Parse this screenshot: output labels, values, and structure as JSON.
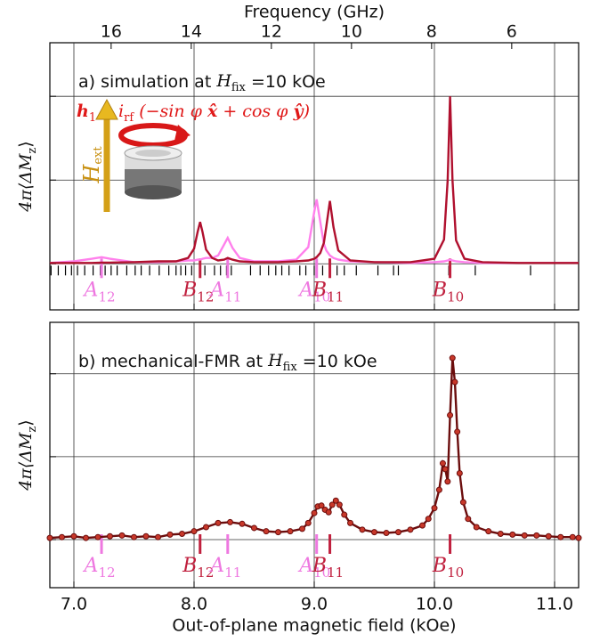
{
  "chart_data": [
    {
      "type": "line",
      "x2label": "Frequency (GHz)",
      "x2lim": [
        17.53,
        4.33
      ],
      "x2ticks": [
        16,
        14,
        12,
        10,
        8,
        6
      ],
      "title": {
        "pre": "a) simulation at ",
        "var": "H",
        "sub": "fix",
        "post": " =10 kOe"
      },
      "formula": [
        {
          "text": "h",
          "bold": true
        },
        {
          "text": "1",
          "sub": true
        },
        {
          "text": " ∝ i"
        },
        {
          "text": "rf",
          "sub": true
        },
        {
          "text": " (−sin φ "
        },
        {
          "text": "x̂",
          "bold": true
        },
        {
          "text": " + cos φ "
        },
        {
          "text": "ŷ",
          "bold": true
        },
        {
          "text": ")"
        }
      ],
      "inset_label": {
        "var": "H",
        "sub": "ext"
      },
      "ylabel": {
        "main": "4π⟨ΔM",
        "sub": "z",
        "end": "⟩"
      },
      "xlim": [
        6.8,
        11.2
      ],
      "xticks": [
        7,
        8,
        9,
        10,
        11
      ],
      "ylim": [
        -0.55,
        2.64
      ],
      "yticks": [
        0,
        1,
        2
      ],
      "grid": true,
      "x": [
        6.8,
        7.0,
        7.15,
        7.23,
        7.3,
        7.5,
        7.7,
        7.85,
        7.95,
        8.0,
        8.03,
        8.05,
        8.07,
        8.1,
        8.15,
        8.2,
        8.25,
        8.28,
        8.32,
        8.38,
        8.5,
        8.7,
        8.85,
        8.95,
        9.0,
        9.02,
        9.05,
        9.08,
        9.1,
        9.13,
        9.16,
        9.2,
        9.3,
        9.5,
        9.8,
        10.0,
        10.08,
        10.11,
        10.13,
        10.15,
        10.18,
        10.25,
        10.4,
        10.7,
        11.0,
        11.2
      ],
      "series": [
        {
          "color": "#ff80ec",
          "values": [
            0.01,
            0.03,
            0.06,
            0.08,
            0.06,
            0.02,
            0.02,
            0.03,
            0.04,
            0.04,
            0.05,
            0.05,
            0.06,
            0.07,
            0.07,
            0.1,
            0.23,
            0.31,
            0.19,
            0.07,
            0.03,
            0.03,
            0.05,
            0.2,
            0.62,
            0.77,
            0.5,
            0.24,
            0.16,
            0.1,
            0.07,
            0.05,
            0.03,
            0.02,
            0.01,
            0.02,
            0.03,
            0.04,
            0.05,
            0.04,
            0.03,
            0.02,
            0.01,
            0.01,
            0.01,
            0.01
          ]
        },
        {
          "color": "#b0102e",
          "values": [
            0.01,
            0.01,
            0.01,
            0.015,
            0.015,
            0.02,
            0.03,
            0.03,
            0.07,
            0.18,
            0.38,
            0.5,
            0.38,
            0.17,
            0.07,
            0.04,
            0.05,
            0.07,
            0.05,
            0.03,
            0.02,
            0.02,
            0.03,
            0.04,
            0.06,
            0.08,
            0.13,
            0.25,
            0.44,
            0.75,
            0.44,
            0.16,
            0.04,
            0.02,
            0.02,
            0.06,
            0.29,
            1.0,
            2.0,
            1.0,
            0.28,
            0.06,
            0.02,
            0.01,
            0.01,
            0.01
          ]
        }
      ],
      "mode_ticks": [
        6.81,
        6.87,
        6.93,
        6.98,
        7.03,
        7.09,
        7.16,
        7.22,
        7.26,
        7.31,
        7.36,
        7.44,
        7.51,
        7.56,
        7.63,
        7.71,
        7.79,
        7.85,
        7.89,
        7.93,
        7.98,
        8.05,
        8.09,
        8.17,
        8.22,
        8.27,
        8.31,
        8.47,
        8.55,
        8.62,
        8.68,
        8.73,
        8.79,
        8.88,
        8.93,
        9.0,
        9.07,
        9.13,
        9.19,
        9.25,
        9.35,
        9.53,
        9.66,
        9.7,
        10.12,
        10.34,
        10.8
      ],
      "modes": [
        {
          "letter": "A",
          "sub": "12",
          "x": 7.23,
          "color": "#ee78e0"
        },
        {
          "letter": "B",
          "sub": "12",
          "x": 8.05,
          "color": "#c0203e"
        },
        {
          "letter": "A",
          "sub": "11",
          "x": 8.28,
          "color": "#ee78e0"
        },
        {
          "letter": "A",
          "sub": "10",
          "x": 9.02,
          "color": "#ee78e0"
        },
        {
          "letter": "B",
          "sub": "11",
          "x": 9.13,
          "color": "#c0203e"
        },
        {
          "letter": "B",
          "sub": "10",
          "x": 10.13,
          "color": "#c0203e"
        }
      ]
    },
    {
      "type": "line",
      "markers": true,
      "title": {
        "pre": "b) mechanical-FMR at ",
        "var": "H",
        "sub": "fix",
        "post": " =10 kOe"
      },
      "ylabel": {
        "main": "4π⟨ΔM",
        "sub": "z",
        "end": "⟩"
      },
      "xlabel": "Out-of-plane magnetic field (kOe)",
      "xlim": [
        6.8,
        11.2
      ],
      "xticks": [
        {
          "value": 7,
          "label": "7.0"
        },
        {
          "value": 8,
          "label": "8.0"
        },
        {
          "value": 9,
          "label": "9.0"
        },
        {
          "value": 10,
          "label": "10.0"
        },
        {
          "value": 11,
          "label": "11.0"
        }
      ],
      "ylim": [
        -0.58,
        2.62
      ],
      "yticks": [
        0,
        1,
        2
      ],
      "grid": true,
      "x": [
        6.8,
        6.9,
        7.0,
        7.1,
        7.2,
        7.3,
        7.4,
        7.5,
        7.6,
        7.7,
        7.8,
        7.9,
        8.0,
        8.1,
        8.2,
        8.3,
        8.4,
        8.5,
        8.6,
        8.7,
        8.8,
        8.9,
        8.95,
        9.0,
        9.03,
        9.06,
        9.09,
        9.12,
        9.15,
        9.18,
        9.21,
        9.25,
        9.3,
        9.4,
        9.5,
        9.6,
        9.7,
        9.8,
        9.9,
        9.95,
        10.0,
        10.04,
        10.07,
        10.09,
        10.11,
        10.13,
        10.15,
        10.17,
        10.19,
        10.21,
        10.24,
        10.28,
        10.35,
        10.45,
        10.55,
        10.65,
        10.75,
        10.85,
        10.95,
        11.05,
        11.15,
        11.2
      ],
      "series": [
        {
          "color": "#6b0d0d",
          "marker_color": "#c8382a",
          "values": [
            0.02,
            0.03,
            0.04,
            0.02,
            0.03,
            0.04,
            0.05,
            0.03,
            0.04,
            0.03,
            0.06,
            0.07,
            0.1,
            0.15,
            0.2,
            0.21,
            0.19,
            0.14,
            0.1,
            0.09,
            0.1,
            0.13,
            0.2,
            0.32,
            0.4,
            0.41,
            0.36,
            0.33,
            0.42,
            0.47,
            0.42,
            0.3,
            0.2,
            0.12,
            0.09,
            0.08,
            0.09,
            0.12,
            0.17,
            0.25,
            0.38,
            0.6,
            0.92,
            0.85,
            0.7,
            1.5,
            2.19,
            1.9,
            1.3,
            0.8,
            0.45,
            0.25,
            0.15,
            0.1,
            0.07,
            0.06,
            0.05,
            0.05,
            0.04,
            0.03,
            0.03,
            0.02
          ]
        }
      ],
      "modes": [
        {
          "letter": "A",
          "sub": "12",
          "x": 7.23,
          "color": "#ee78e0"
        },
        {
          "letter": "B",
          "sub": "12",
          "x": 8.05,
          "color": "#c0203e"
        },
        {
          "letter": "A",
          "sub": "11",
          "x": 8.28,
          "color": "#ee78e0"
        },
        {
          "letter": "A",
          "sub": "10",
          "x": 9.02,
          "color": "#ee78e0"
        },
        {
          "letter": "B",
          "sub": "11",
          "x": 9.13,
          "color": "#c0203e"
        },
        {
          "letter": "B",
          "sub": "10",
          "x": 10.13,
          "color": "#c0203e"
        }
      ]
    }
  ]
}
